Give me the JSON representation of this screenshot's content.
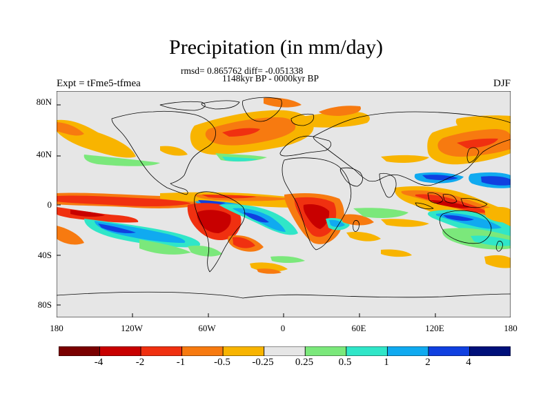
{
  "title": "Precipitation (in mm/day)",
  "stats_line": "rmsd= 0.865762 diff= -0.051338",
  "period": "1148kyr BP - 0000kyr BP",
  "experiment": "Expt = tFme5-tfmea",
  "season": "DJF",
  "lat_labels": [
    "80N",
    "40N",
    "0",
    "40S",
    "80S"
  ],
  "lon_labels": [
    "180",
    "120W",
    "60W",
    "0",
    "60E",
    "120E",
    "180"
  ],
  "colorbar": {
    "labels": [
      "-4",
      "-2",
      "-1",
      "-0.5",
      "-0.25",
      "0.25",
      "0.5",
      "1",
      "2",
      "4"
    ],
    "colors": [
      "#7a0000",
      "#c80000",
      "#f03010",
      "#f77a10",
      "#f8b400",
      "#e6e6e6",
      "#7be87b",
      "#30e6c8",
      "#10aaf0",
      "#1040e0",
      "#00107a"
    ]
  },
  "map": {
    "ocean_background": "#e6e6e6",
    "coastline_color": "#000000"
  }
}
